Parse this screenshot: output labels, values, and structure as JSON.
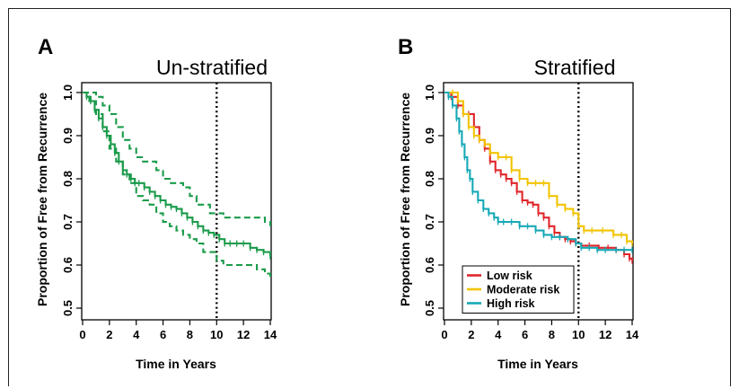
{
  "chart_data": [
    {
      "panel": "A",
      "type": "line",
      "title": "Un-stratified",
      "xlabel": "Time in Years",
      "ylabel": "Proportion of  Free from Recurrence",
      "xlim": [
        0,
        14
      ],
      "ylim": [
        0.5,
        1.0
      ],
      "xticks": [
        0,
        2,
        4,
        6,
        8,
        10,
        12,
        14
      ],
      "yticks": [
        0.5,
        0.6,
        0.7,
        0.8,
        0.9,
        1.0
      ],
      "vline_x": 10,
      "series": [
        {
          "color": "#1a9b4a",
          "style": "solid",
          "x": [
            0,
            0.3,
            0.6,
            0.9,
            1.2,
            1.5,
            1.8,
            2.1,
            2.4,
            2.7,
            3.0,
            3.3,
            3.6,
            3.9,
            4.2,
            4.6,
            5.0,
            5.4,
            5.8,
            6.2,
            6.6,
            7.0,
            7.4,
            7.8,
            8.2,
            8.6,
            9.0,
            9.4,
            9.8,
            10.2,
            10.6,
            11.0,
            11.5,
            12.0,
            12.5,
            13.0,
            13.5,
            14.0
          ],
          "y": [
            1.0,
            0.99,
            0.98,
            0.96,
            0.94,
            0.92,
            0.9,
            0.88,
            0.86,
            0.84,
            0.82,
            0.81,
            0.8,
            0.79,
            0.79,
            0.78,
            0.77,
            0.76,
            0.75,
            0.74,
            0.735,
            0.73,
            0.72,
            0.71,
            0.7,
            0.69,
            0.68,
            0.675,
            0.67,
            0.66,
            0.65,
            0.65,
            0.65,
            0.65,
            0.64,
            0.635,
            0.63,
            0.62
          ]
        },
        {
          "color": "#1a9b4a",
          "style": "dashed",
          "x": [
            0,
            0.5,
            1.0,
            1.5,
            2.0,
            2.5,
            3.0,
            3.5,
            4.0,
            4.5,
            5.0,
            5.5,
            6.0,
            6.5,
            7.0,
            7.5,
            8.0,
            8.5,
            9.0,
            9.5,
            10.0,
            10.5,
            11.0,
            12.0,
            13.0,
            13.6,
            14.0
          ],
          "y": [
            1.0,
            1.0,
            0.99,
            0.97,
            0.95,
            0.92,
            0.89,
            0.87,
            0.85,
            0.84,
            0.84,
            0.82,
            0.8,
            0.79,
            0.79,
            0.78,
            0.76,
            0.74,
            0.74,
            0.72,
            0.72,
            0.71,
            0.71,
            0.71,
            0.71,
            0.7,
            0.69
          ]
        },
        {
          "color": "#1a9b4a",
          "style": "dashed",
          "x": [
            0,
            0.5,
            1.0,
            1.5,
            2.0,
            2.5,
            3.0,
            3.5,
            4.0,
            4.5,
            5.0,
            5.5,
            6.0,
            6.5,
            7.0,
            7.5,
            8.0,
            8.5,
            9.0,
            9.5,
            10.0,
            10.5,
            11.0,
            12.0,
            13.0,
            13.6,
            14.0
          ],
          "y": [
            1.0,
            0.98,
            0.95,
            0.91,
            0.87,
            0.84,
            0.81,
            0.79,
            0.76,
            0.75,
            0.74,
            0.72,
            0.7,
            0.69,
            0.68,
            0.67,
            0.66,
            0.65,
            0.63,
            0.63,
            0.61,
            0.6,
            0.6,
            0.6,
            0.59,
            0.58,
            0.57
          ]
        }
      ]
    },
    {
      "panel": "B",
      "type": "line",
      "title": "Stratified",
      "xlabel": "Time in Years",
      "ylabel": "Proportion of  Free from Recurrence",
      "xlim": [
        0,
        14
      ],
      "ylim": [
        0.5,
        1.0
      ],
      "xticks": [
        0,
        2,
        4,
        6,
        8,
        10,
        12,
        14
      ],
      "yticks": [
        0.5,
        0.6,
        0.7,
        0.8,
        0.9,
        1.0
      ],
      "vline_x": 10,
      "legend": "bottom-left",
      "series": [
        {
          "name": "Low risk",
          "color": "#e0262b",
          "x": [
            0,
            0.5,
            1.0,
            1.4,
            1.8,
            2.2,
            2.6,
            3.0,
            3.4,
            3.8,
            4.2,
            4.6,
            5.0,
            5.4,
            5.8,
            6.2,
            6.6,
            7.0,
            7.4,
            7.8,
            8.2,
            8.6,
            9.0,
            9.4,
            9.8,
            10.2,
            10.8,
            11.5,
            12.2,
            12.8,
            13.4,
            13.8,
            14.0
          ],
          "y": [
            1.0,
            0.99,
            0.97,
            0.95,
            0.95,
            0.92,
            0.89,
            0.87,
            0.84,
            0.82,
            0.81,
            0.8,
            0.79,
            0.77,
            0.75,
            0.745,
            0.74,
            0.72,
            0.71,
            0.69,
            0.675,
            0.665,
            0.66,
            0.655,
            0.65,
            0.645,
            0.645,
            0.64,
            0.64,
            0.635,
            0.625,
            0.615,
            0.61
          ]
        },
        {
          "name": "Moderate risk",
          "color": "#f2c400",
          "x": [
            0,
            0.6,
            1.0,
            1.4,
            1.8,
            2.2,
            2.6,
            3.0,
            3.4,
            4.0,
            4.6,
            5.0,
            5.6,
            6.2,
            6.8,
            7.4,
            7.8,
            8.4,
            9.0,
            9.6,
            10.0,
            10.4,
            11.0,
            11.8,
            12.6,
            13.2,
            13.6,
            14.0
          ],
          "y": [
            1.0,
            1.0,
            0.98,
            0.95,
            0.92,
            0.9,
            0.89,
            0.88,
            0.86,
            0.85,
            0.85,
            0.82,
            0.8,
            0.79,
            0.79,
            0.79,
            0.76,
            0.74,
            0.73,
            0.72,
            0.69,
            0.68,
            0.68,
            0.68,
            0.67,
            0.67,
            0.655,
            0.65
          ]
        },
        {
          "name": "High risk",
          "color": "#16a9b6",
          "x": [
            0,
            0.3,
            0.6,
            0.9,
            1.1,
            1.3,
            1.5,
            1.7,
            1.9,
            2.1,
            2.5,
            2.9,
            3.3,
            3.7,
            4.0,
            4.4,
            5.0,
            5.6,
            6.2,
            6.8,
            7.4,
            8.0,
            8.6,
            9.2,
            9.8,
            10.2,
            10.8,
            11.4,
            12.0,
            12.8,
            13.4,
            14.0
          ],
          "y": [
            1.0,
            0.99,
            0.97,
            0.94,
            0.91,
            0.88,
            0.85,
            0.82,
            0.8,
            0.77,
            0.75,
            0.73,
            0.72,
            0.71,
            0.7,
            0.7,
            0.7,
            0.69,
            0.69,
            0.68,
            0.67,
            0.665,
            0.665,
            0.66,
            0.65,
            0.64,
            0.64,
            0.635,
            0.635,
            0.635,
            0.635,
            0.635
          ]
        }
      ]
    }
  ]
}
